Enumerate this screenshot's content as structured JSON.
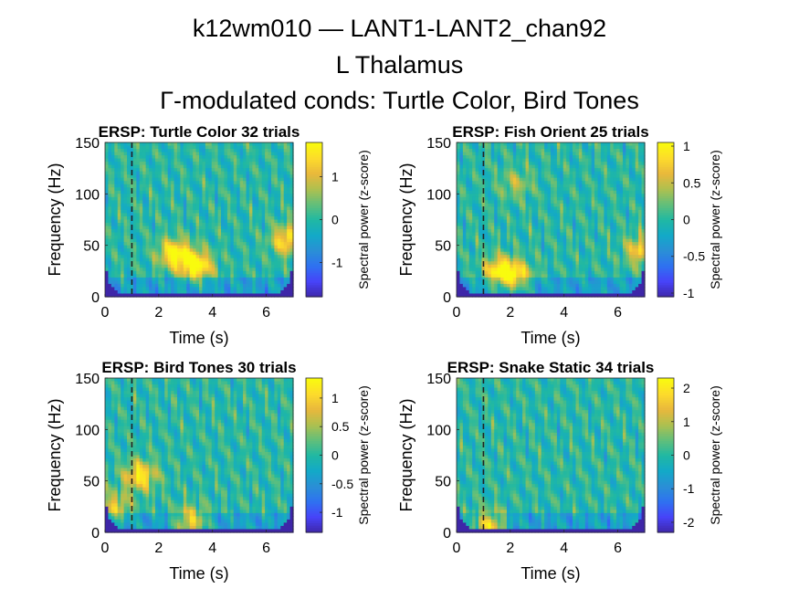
{
  "figure": {
    "title_lines": [
      "k12wm010 — LANT1-LANT2_chan92",
      "L Thalamus",
      "Γ-modulated conds: Turtle Color, Bird Tones"
    ]
  },
  "colors": {
    "parula": [
      "#3e26a8",
      "#4743f8",
      "#2f71f1",
      "#2a8fd6",
      "#13a9c8",
      "#20b8a3",
      "#62bf7a",
      "#afc04f",
      "#e9b83c",
      "#fddc2b",
      "#f9fb0e"
    ]
  },
  "chart_data": [
    {
      "type": "heatmap",
      "title": "ERSP: Turtle Color 32 trials",
      "xlabel": "Time (s)",
      "ylabel": "Frequency (Hz)",
      "colorbar_label": "Spectral power (z-score)",
      "xlim": [
        0,
        7
      ],
      "ylim": [
        0,
        150
      ],
      "xticks": [
        0,
        2,
        4,
        6
      ],
      "yticks": [
        0,
        50,
        100,
        150
      ],
      "clim": [
        -1.8,
        1.8
      ],
      "cticks": [
        -1,
        0,
        1
      ],
      "event_line_x": 1,
      "data_extent_x": [
        0,
        7
      ],
      "hotspots": [
        {
          "t": 2.6,
          "f": 42,
          "v": 1.0
        },
        {
          "t": 3.4,
          "f": 30,
          "v": 1.1
        },
        {
          "t": 6.8,
          "f": 55,
          "v": 0.9
        }
      ]
    },
    {
      "type": "heatmap",
      "title": "ERSP: Fish Orient 25 trials",
      "xlabel": "Time (s)",
      "ylabel": "Frequency (Hz)",
      "colorbar_label": "Spectral power (z-score)",
      "xlim": [
        0,
        7
      ],
      "ylim": [
        0,
        150
      ],
      "xticks": [
        0,
        2,
        4,
        6
      ],
      "yticks": [
        0,
        50,
        100,
        150
      ],
      "clim": [
        -1.05,
        1.05
      ],
      "cticks": [
        -1,
        -0.5,
        0,
        0.5,
        1
      ],
      "event_line_x": 1,
      "data_extent_x": [
        0,
        7
      ],
      "hotspots": [
        {
          "t": 1.6,
          "f": 25,
          "v": 0.9
        },
        {
          "t": 2.2,
          "f": 20,
          "v": 0.8
        },
        {
          "t": 6.9,
          "f": 45,
          "v": 0.8
        },
        {
          "t": 2.2,
          "f": 110,
          "v": 0.4
        }
      ]
    },
    {
      "type": "heatmap",
      "title": "ERSP: Bird Tones 30 trials",
      "xlabel": "Time (s)",
      "ylabel": "Frequency (Hz)",
      "colorbar_label": "Spectral power (z-score)",
      "xlim": [
        0,
        7
      ],
      "ylim": [
        0,
        150
      ],
      "xticks": [
        0,
        2,
        4,
        6
      ],
      "yticks": [
        0,
        50,
        100,
        150
      ],
      "clim": [
        -1.35,
        1.35
      ],
      "cticks": [
        -1,
        -0.5,
        0,
        0.5,
        1
      ],
      "event_line_x": 1,
      "data_extent_x": [
        0,
        7
      ],
      "hotspots": [
        {
          "t": 1.3,
          "f": 55,
          "v": 0.9
        },
        {
          "t": 3.2,
          "f": 10,
          "v": 0.9
        },
        {
          "t": 0.4,
          "f": 25,
          "v": 0.6
        }
      ]
    },
    {
      "type": "heatmap",
      "title": "ERSP: Snake Static 34 trials",
      "xlabel": "Time (s)",
      "ylabel": "Frequency (Hz)",
      "colorbar_label": "Spectral power (z-score)",
      "xlim": [
        0,
        7
      ],
      "ylim": [
        0,
        150
      ],
      "xticks": [
        0,
        2,
        4,
        6
      ],
      "yticks": [
        0,
        50,
        100,
        150
      ],
      "clim": [
        -2.3,
        2.3
      ],
      "cticks": [
        -2,
        -1,
        0,
        1,
        2
      ],
      "event_line_x": 1,
      "data_extent_x": [
        0,
        7
      ],
      "hotspots": [
        {
          "t": 1.2,
          "f": 6,
          "v": 1.0
        }
      ]
    }
  ]
}
